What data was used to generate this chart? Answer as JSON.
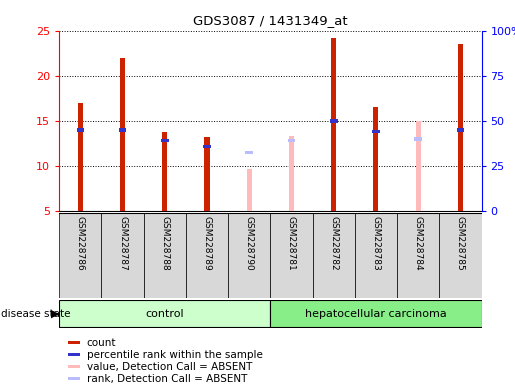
{
  "title": "GDS3087 / 1431349_at",
  "samples": [
    "GSM228786",
    "GSM228787",
    "GSM228788",
    "GSM228789",
    "GSM228790",
    "GSM228781",
    "GSM228782",
    "GSM228783",
    "GSM228784",
    "GSM228785"
  ],
  "groups": [
    "control",
    "control",
    "control",
    "control",
    "control",
    "hepatocellular carcinoma",
    "hepatocellular carcinoma",
    "hepatocellular carcinoma",
    "hepatocellular carcinoma",
    "hepatocellular carcinoma"
  ],
  "count_values": [
    17.0,
    22.0,
    13.8,
    13.2,
    null,
    null,
    24.2,
    16.5,
    null,
    23.5
  ],
  "rank_values": [
    14.0,
    14.0,
    12.8,
    12.2,
    null,
    null,
    15.0,
    13.8,
    null,
    14.0
  ],
  "absent_value_values": [
    null,
    null,
    null,
    null,
    9.7,
    13.3,
    null,
    null,
    15.0,
    null
  ],
  "absent_rank_values": [
    null,
    null,
    null,
    null,
    11.5,
    12.8,
    null,
    null,
    13.0,
    null
  ],
  "ylim": [
    5,
    25
  ],
  "yticks": [
    5,
    10,
    15,
    20,
    25
  ],
  "right_yticks": [
    0,
    25,
    50,
    75,
    100
  ],
  "right_yticklabels": [
    "0",
    "25",
    "50",
    "75",
    "100%"
  ],
  "bar_width": 0.12,
  "rank_bar_width": 0.18,
  "count_color": "#cc2200",
  "rank_color": "#3333cc",
  "absent_value_color": "#ffbbbb",
  "absent_rank_color": "#bbbbff",
  "control_color": "#ccffcc",
  "hcc_color": "#88ee88",
  "gray_cell_color": "#d8d8d8",
  "legend_items": [
    {
      "label": "count",
      "color": "#cc2200"
    },
    {
      "label": "percentile rank within the sample",
      "color": "#3333cc"
    },
    {
      "label": "value, Detection Call = ABSENT",
      "color": "#ffbbbb"
    },
    {
      "label": "rank, Detection Call = ABSENT",
      "color": "#bbbbff"
    }
  ],
  "disease_state_label": "disease state",
  "control_label": "control",
  "hcc_label": "hepatocellular carcinoma",
  "n_control": 5,
  "n_hcc": 5
}
